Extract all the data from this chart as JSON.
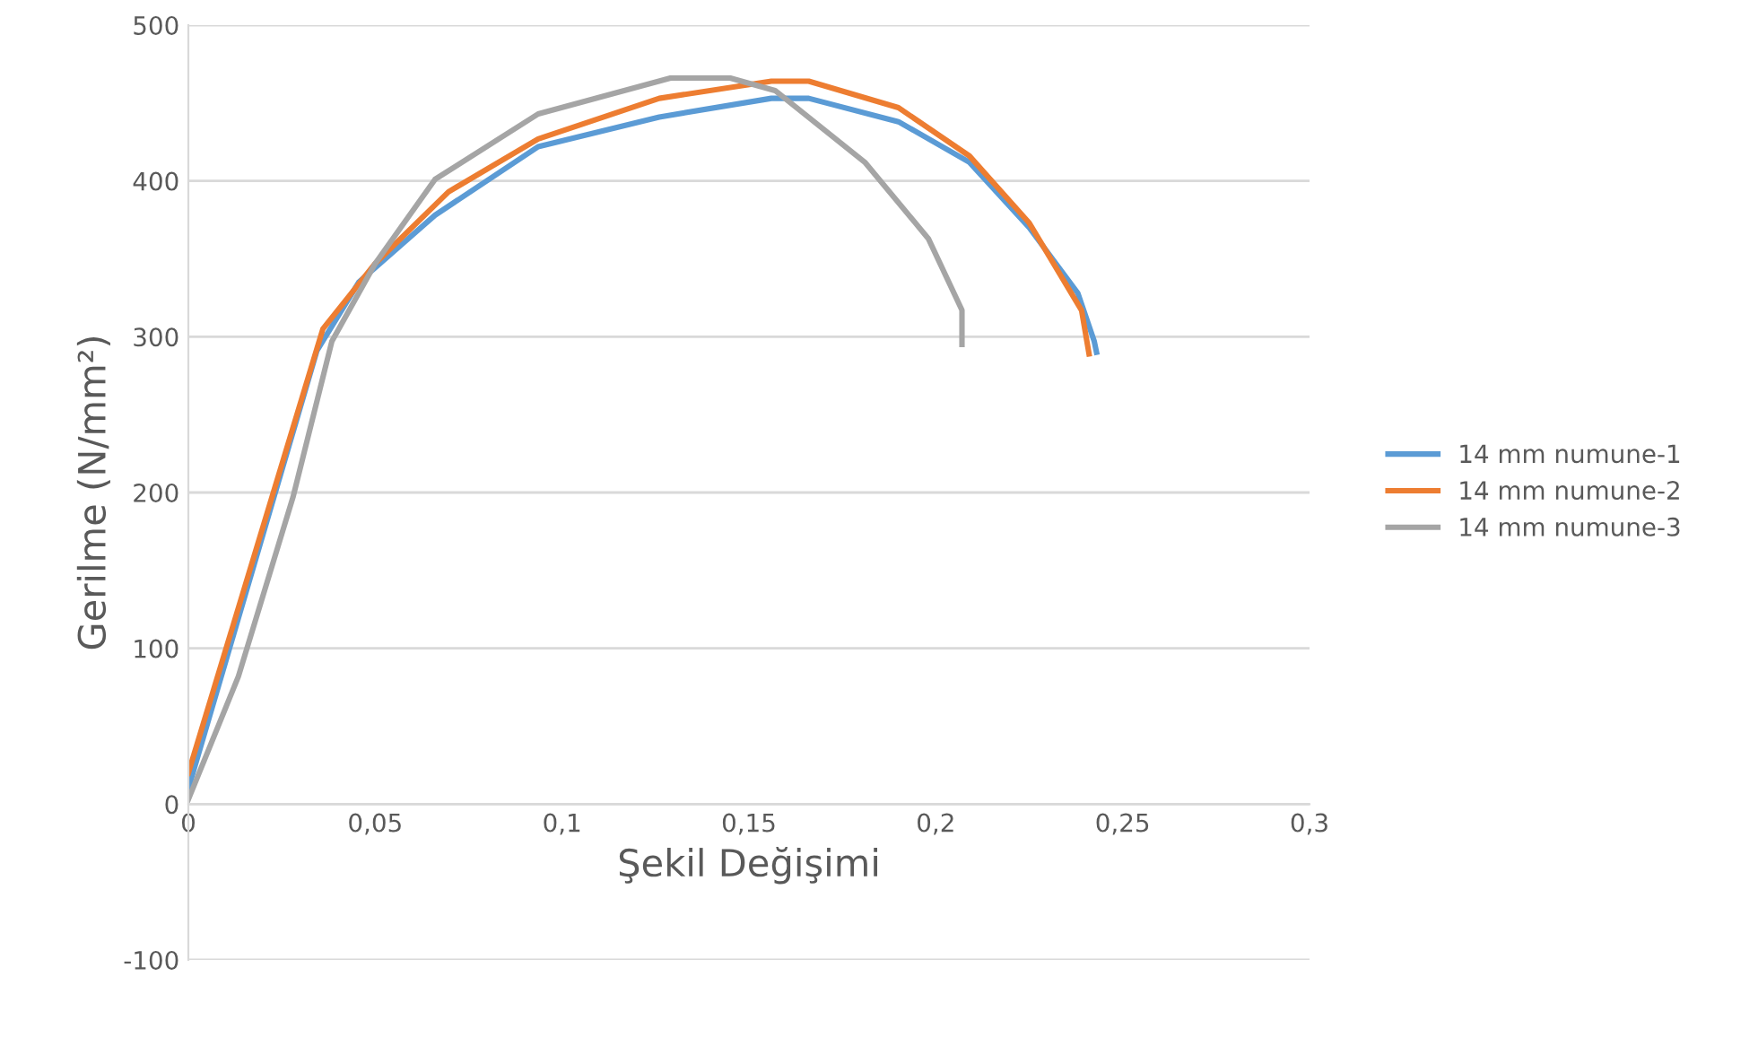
{
  "chart_data": {
    "type": "line",
    "xlabel": "Şekil Değişimi",
    "ylabel": "Gerilme (N/mm²)",
    "xlim": [
      0,
      0.3
    ],
    "ylim": [
      -100,
      500
    ],
    "xticks": [
      0,
      {
        "value": 0.05,
        "label": "0,05"
      },
      {
        "value": 0.1,
        "label": "0,1"
      },
      {
        "value": 0.15,
        "label": "0,15"
      },
      {
        "value": 0.2,
        "label": "0,2"
      },
      {
        "value": 0.25,
        "label": "0,25"
      },
      {
        "value": 0.3,
        "label": "0,3"
      }
    ],
    "yticks": [
      -100,
      0,
      100,
      200,
      300,
      400,
      500
    ],
    "grid": "y",
    "legend": "right",
    "marker": "none",
    "line_style": "solid",
    "series": [
      {
        "name": "14 mm numune-1",
        "color": "#5b9bd5",
        "x": [
          0,
          0.0344,
          0.0456,
          0.066,
          0.0936,
          0.126,
          0.156,
          0.166,
          0.19,
          0.209,
          0.225,
          0.238,
          0.2424,
          0.243
        ],
        "values": [
          10,
          291,
          335,
          378,
          422,
          441,
          453,
          453,
          438,
          412,
          370,
          328,
          297,
          290
        ]
      },
      {
        "name": "14 mm numune-2",
        "color": "#ed7d31",
        "x": [
          0,
          0.036,
          0.05,
          0.0696,
          0.0936,
          0.126,
          0.156,
          0.166,
          0.19,
          0.209,
          0.225,
          0.239,
          0.241
        ],
        "values": [
          20,
          305,
          347,
          393,
          427,
          453,
          464,
          464,
          447,
          416,
          373,
          317,
          289
        ]
      },
      {
        "name": "14 mm numune-3",
        "color": "#a5a5a5",
        "x": [
          0,
          0.0134,
          0.028,
          0.0384,
          0.05,
          0.066,
          0.0936,
          0.129,
          0.145,
          0.157,
          0.181,
          0.198,
          0.207,
          0.207
        ],
        "values": [
          3,
          82,
          197,
          297,
          347,
          401,
          443,
          466,
          466,
          458,
          412,
          363,
          317,
          295
        ]
      }
    ]
  }
}
